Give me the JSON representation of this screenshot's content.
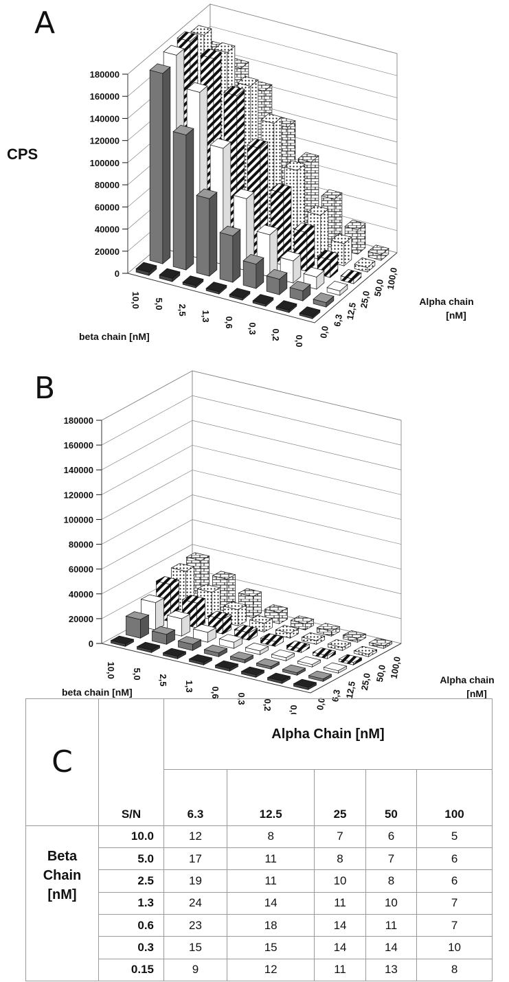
{
  "panels": {
    "a": {
      "letter": "A"
    },
    "b": {
      "letter": "B"
    },
    "c": {
      "letter": "C"
    }
  },
  "chart_data": [
    {
      "type": "bar3d",
      "ylabel": "CPS",
      "xlabel": "beta chain [nM]",
      "zlabel": "Alpha chain [nM]",
      "ylim": [
        0,
        180000
      ],
      "y_ticks": [
        "180000",
        "160000",
        "140000",
        "120000",
        "100000",
        "80000",
        "60000",
        "40000",
        "20000",
        "0"
      ],
      "beta_labels": [
        "10,0",
        "5,0",
        "2,5",
        "1,3",
        "0,6",
        "0,3",
        "0,2",
        "0,0"
      ],
      "alpha_labels": [
        "0,0",
        "6,3",
        "12,5",
        "25,0",
        "50,0",
        "100,0"
      ],
      "series": [
        {
          "name": "0,0",
          "values": [
            3000,
            3000,
            2000,
            2000,
            2000,
            2000,
            2000,
            2000
          ]
        },
        {
          "name": "6,3",
          "values": [
            172000,
            122000,
            70000,
            42000,
            22000,
            14000,
            9000,
            4000
          ]
        },
        {
          "name": "12,5",
          "values": [
            178000,
            150000,
            105000,
            65000,
            38000,
            20000,
            11000,
            4000
          ]
        },
        {
          "name": "25,0",
          "values": [
            180000,
            170000,
            142000,
            100000,
            65000,
            35000,
            16000,
            4000
          ]
        },
        {
          "name": "50,0",
          "values": [
            175000,
            165000,
            140000,
            112000,
            75000,
            40000,
            20000,
            4000
          ]
        },
        {
          "name": "100,0",
          "values": [
            150000,
            140000,
            125000,
            98000,
            72000,
            44000,
            22000,
            5000
          ]
        }
      ]
    },
    {
      "type": "bar3d",
      "xlabel": "beta chain [nM]",
      "zlabel": "Alpha chain [nM]",
      "ylim": [
        0,
        180000
      ],
      "y_ticks": [
        "180000",
        "160000",
        "140000",
        "120000",
        "100000",
        "80000",
        "60000",
        "40000",
        "20000",
        "0"
      ],
      "beta_labels": [
        "10,0",
        "5,0",
        "2,5",
        "1,3",
        "0,6",
        "0,3",
        "0,2",
        "0,0"
      ],
      "alpha_labels": [
        "0,0",
        "6,3",
        "12,5",
        "25,0",
        "50,0",
        "100,0"
      ],
      "series": [
        {
          "name": "0,0",
          "values": [
            2000,
            2000,
            2000,
            2000,
            2000,
            2000,
            2000,
            2000
          ]
        },
        {
          "name": "6,3",
          "values": [
            15000,
            8000,
            5000,
            3000,
            2500,
            2000,
            2000,
            2000
          ]
        },
        {
          "name": "12,5",
          "values": [
            22000,
            14000,
            8000,
            5000,
            3000,
            2500,
            2000,
            2000
          ]
        },
        {
          "name": "25,0",
          "values": [
            30000,
            20000,
            12000,
            6000,
            4000,
            3000,
            2500,
            2000
          ]
        },
        {
          "name": "50,0",
          "values": [
            34000,
            22000,
            13000,
            7000,
            4000,
            3000,
            2500,
            2000
          ]
        },
        {
          "name": "100,0",
          "values": [
            36000,
            26000,
            17000,
            9000,
            5000,
            4000,
            3000,
            2000
          ]
        }
      ]
    },
    {
      "type": "table",
      "header_alpha": "Alpha Chain [nM]",
      "header_beta_1": "Beta",
      "header_beta_2": "Chain",
      "header_beta_3": "[nM]",
      "sn_label": "S/N",
      "columns": [
        "6.3",
        "12.5",
        "25",
        "50",
        "100"
      ],
      "rows": [
        {
          "label": "10.0",
          "values": [
            "12",
            "8",
            "7",
            "6",
            "5"
          ]
        },
        {
          "label": "5.0",
          "values": [
            "17",
            "11",
            "8",
            "7",
            "6"
          ]
        },
        {
          "label": "2.5",
          "values": [
            "19",
            "11",
            "10",
            "8",
            "6"
          ]
        },
        {
          "label": "1.3",
          "values": [
            "24",
            "14",
            "11",
            "10",
            "7"
          ]
        },
        {
          "label": "0.6",
          "values": [
            "23",
            "18",
            "14",
            "11",
            "7"
          ]
        },
        {
          "label": "0.3",
          "values": [
            "15",
            "15",
            "14",
            "14",
            "10"
          ]
        },
        {
          "label": "0.15",
          "values": [
            "9",
            "12",
            "11",
            "13",
            "8"
          ]
        }
      ]
    }
  ]
}
